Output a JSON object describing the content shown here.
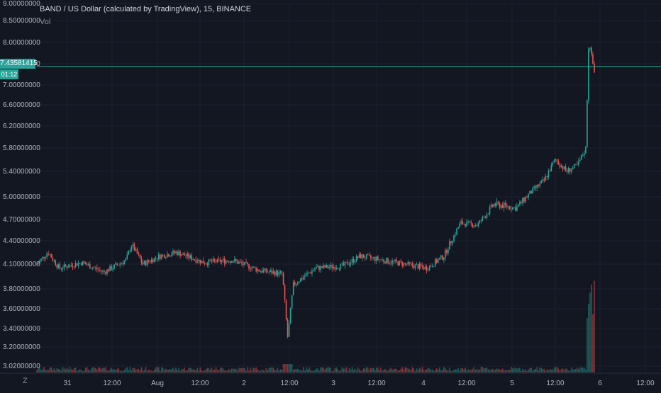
{
  "legend": {
    "title": "BAND / US Dollar (calculated by TradingView), 15, BINANCE",
    "volume": "Vol"
  },
  "last_price": "7.43581415",
  "countdown": "01:12",
  "corner_icon": "Z",
  "colors": {
    "background": "#131722",
    "up": "#26a69a",
    "down": "#ef5350",
    "grid": "#1f2330",
    "price_line": "#26a69a"
  },
  "chart_data": {
    "type": "candlestick",
    "title": "BAND / US Dollar (calculated by TradingView), 15, BINANCE",
    "y_ticks": [
      "9.00000000",
      "8.50000000",
      "8.00000000",
      "7.50000000",
      "7.00000000",
      "6.60000000",
      "6.20000000",
      "5.80000000",
      "5.40000000",
      "5.00000000",
      "4.70000000",
      "4.40000000",
      "4.10000000",
      "3.80000000",
      "3.60000000",
      "3.40000000",
      "3.20000000",
      "3.02000000"
    ],
    "x_ticks": [
      "31",
      "12:00",
      "Aug",
      "12:00",
      "2",
      "12:00",
      "3",
      "12:00",
      "4",
      "12:00",
      "5",
      "12:00",
      "6",
      "12:00"
    ],
    "ylim": [
      3.0,
      9.0
    ],
    "log_scale": true,
    "price_path": [
      {
        "t": 0.0,
        "p": 4.1
      },
      {
        "t": 0.02,
        "p": 4.25
      },
      {
        "t": 0.04,
        "p": 4.05
      },
      {
        "t": 0.08,
        "p": 4.12
      },
      {
        "t": 0.12,
        "p": 4.0
      },
      {
        "t": 0.16,
        "p": 4.15
      },
      {
        "t": 0.17,
        "p": 4.35
      },
      {
        "t": 0.19,
        "p": 4.1
      },
      {
        "t": 0.22,
        "p": 4.2
      },
      {
        "t": 0.25,
        "p": 4.25
      },
      {
        "t": 0.3,
        "p": 4.12
      },
      {
        "t": 0.35,
        "p": 4.15
      },
      {
        "t": 0.4,
        "p": 4.02
      },
      {
        "t": 0.44,
        "p": 3.98
      },
      {
        "t": 0.45,
        "p": 3.3
      },
      {
        "t": 0.46,
        "p": 3.85
      },
      {
        "t": 0.5,
        "p": 4.05
      },
      {
        "t": 0.55,
        "p": 4.08
      },
      {
        "t": 0.58,
        "p": 4.2
      },
      {
        "t": 0.62,
        "p": 4.15
      },
      {
        "t": 0.66,
        "p": 4.1
      },
      {
        "t": 0.7,
        "p": 4.05
      },
      {
        "t": 0.73,
        "p": 4.2
      },
      {
        "t": 0.76,
        "p": 4.65
      },
      {
        "t": 0.79,
        "p": 4.62
      },
      {
        "t": 0.82,
        "p": 4.9
      },
      {
        "t": 0.86,
        "p": 4.85
      },
      {
        "t": 0.89,
        "p": 5.1
      },
      {
        "t": 0.91,
        "p": 5.25
      },
      {
        "t": 0.93,
        "p": 5.6
      },
      {
        "t": 0.95,
        "p": 5.4
      },
      {
        "t": 0.97,
        "p": 5.5
      },
      {
        "t": 0.985,
        "p": 5.8
      },
      {
        "t": 0.99,
        "p": 7.95
      },
      {
        "t": 1.0,
        "p": 7.35
      }
    ]
  }
}
